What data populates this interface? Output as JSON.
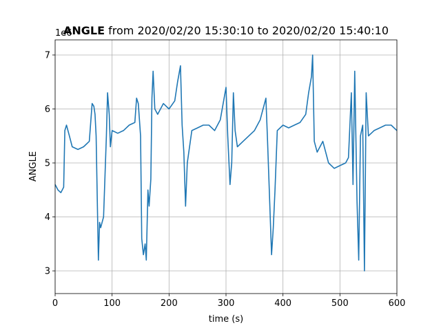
{
  "chart_data": {
    "type": "line",
    "title_bold": "ANGLE",
    "title_rest": " from 2020/02/20 15:30:10 to 2020/02/20 15:40:10",
    "xlabel": "time (s)",
    "ylabel": "ANGLE",
    "y_offset_text": "1e6",
    "xlim": [
      0,
      600
    ],
    "ylim": [
      2.58,
      7.28
    ],
    "xticks": [
      0,
      100,
      200,
      300,
      400,
      500,
      600
    ],
    "xtick_labels": [
      "0",
      "100",
      "200",
      "300",
      "400",
      "500",
      "600"
    ],
    "yticks": [
      3,
      4,
      5,
      6,
      7
    ],
    "ytick_labels": [
      "3",
      "4",
      "5",
      "6",
      "7"
    ],
    "grid": true,
    "line_color": "#1f77b4",
    "series": [
      {
        "x": [
          0,
          5,
          10,
          15,
          17,
          20,
          25,
          30,
          40,
          50,
          60,
          65,
          68,
          70,
          72,
          74,
          76,
          78,
          80,
          85,
          90,
          92,
          95,
          97,
          100,
          110,
          120,
          130,
          140,
          143,
          146,
          150,
          152,
          155,
          158,
          160,
          163,
          165,
          168,
          170,
          172,
          175,
          180,
          190,
          200,
          210,
          215,
          220,
          223,
          226,
          229,
          232,
          240,
          250,
          260,
          270,
          280,
          290,
          300,
          303,
          307,
          310,
          313,
          316,
          320,
          330,
          340,
          350,
          360,
          370,
          373,
          376,
          380,
          383,
          386,
          390,
          400,
          410,
          420,
          430,
          440,
          445,
          450,
          452,
          455,
          460,
          470,
          480,
          490,
          500,
          510,
          515,
          520,
          523,
          526,
          530,
          533,
          536,
          540,
          543,
          546,
          550,
          560,
          570,
          580,
          590,
          600
        ],
        "y": [
          4.6,
          4.5,
          4.45,
          4.55,
          5.6,
          5.7,
          5.5,
          5.3,
          5.25,
          5.3,
          5.4,
          6.1,
          6.05,
          5.9,
          5.5,
          4.3,
          3.2,
          3.9,
          3.8,
          4.0,
          5.5,
          6.3,
          5.9,
          5.3,
          5.6,
          5.55,
          5.6,
          5.7,
          5.75,
          6.2,
          6.1,
          5.5,
          3.6,
          3.3,
          3.5,
          3.2,
          4.5,
          4.2,
          4.7,
          6.2,
          6.7,
          6.0,
          5.9,
          6.1,
          6.0,
          6.15,
          6.5,
          6.8,
          5.7,
          5.2,
          4.2,
          5.0,
          5.6,
          5.65,
          5.7,
          5.7,
          5.6,
          5.8,
          6.4,
          5.5,
          4.6,
          5.0,
          6.3,
          5.6,
          5.3,
          5.4,
          5.5,
          5.6,
          5.8,
          6.2,
          5.4,
          4.5,
          3.3,
          3.8,
          4.5,
          5.6,
          5.7,
          5.65,
          5.7,
          5.75,
          5.9,
          6.3,
          6.6,
          7.0,
          5.4,
          5.2,
          5.4,
          5.0,
          4.9,
          4.95,
          5.0,
          5.1,
          6.3,
          4.6,
          6.7,
          4.3,
          3.2,
          5.5,
          5.7,
          3.0,
          6.3,
          5.5,
          5.6,
          5.65,
          5.7,
          5.7,
          5.6
        ]
      }
    ]
  }
}
